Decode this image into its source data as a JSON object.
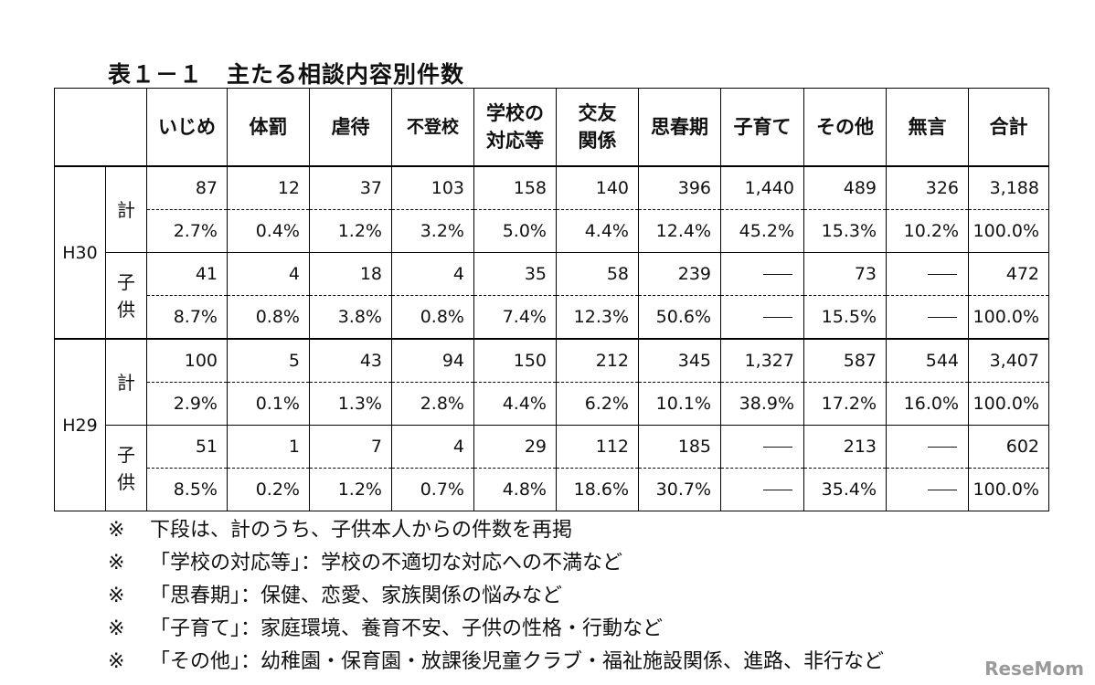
{
  "title": "表１－１　主たる相談内容別件数",
  "headers": [
    "いじめ",
    "体罰",
    "虐待",
    "不登校",
    "学校の\n対応等",
    "交友\n関係",
    "思春期",
    "子育て",
    "その他",
    "無言",
    "合計"
  ],
  "groups": [
    {
      "year": "H30",
      "rows": [
        {
          "label": "計",
          "counts": [
            "87",
            "12",
            "37",
            "103",
            "158",
            "140",
            "396",
            "1,440",
            "489",
            "326",
            "3,188"
          ],
          "percents": [
            "2.7%",
            "0.4%",
            "1.2%",
            "3.2%",
            "5.0%",
            "4.4%",
            "12.4%",
            "45.2%",
            "15.3%",
            "10.2%",
            "100.0%"
          ]
        },
        {
          "label": "子\n供",
          "counts": [
            "41",
            "4",
            "18",
            "4",
            "35",
            "58",
            "239",
            "—",
            "73",
            "—",
            "472"
          ],
          "percents": [
            "8.7%",
            "0.8%",
            "3.8%",
            "0.8%",
            "7.4%",
            "12.3%",
            "50.6%",
            "—",
            "15.5%",
            "—",
            "100.0%"
          ]
        }
      ]
    },
    {
      "year": "H29",
      "rows": [
        {
          "label": "計",
          "counts": [
            "100",
            "5",
            "43",
            "94",
            "150",
            "212",
            "345",
            "1,327",
            "587",
            "544",
            "3,407"
          ],
          "percents": [
            "2.9%",
            "0.1%",
            "1.3%",
            "2.8%",
            "4.4%",
            "6.2%",
            "10.1%",
            "38.9%",
            "17.2%",
            "16.0%",
            "100.0%"
          ]
        },
        {
          "label": "子\n供",
          "counts": [
            "51",
            "1",
            "7",
            "4",
            "29",
            "112",
            "185",
            "—",
            "213",
            "—",
            "602"
          ],
          "percents": [
            "8.5%",
            "0.2%",
            "1.2%",
            "0.7%",
            "4.8%",
            "18.6%",
            "30.7%",
            "—",
            "35.4%",
            "—",
            "100.0%"
          ]
        }
      ]
    }
  ],
  "notes": [
    {
      "mark": "※",
      "text": "下段は、計のうち、子供本人からの件数を再掲"
    },
    {
      "mark": "※",
      "text": "「学校の対応等」：学校の不適切な対応への不満など"
    },
    {
      "mark": "※",
      "text": "「思春期」：保健、恋愛、家族関係の悩みなど"
    },
    {
      "mark": "※",
      "text": "「子育て」：家庭環境、養育不安、子供の性格・行動など"
    },
    {
      "mark": "※",
      "text": "「その他」：幼稚園・保育園・放課後児童クラブ・福祉施設関係、進路、非行など"
    }
  ],
  "logo": "ReseMom"
}
